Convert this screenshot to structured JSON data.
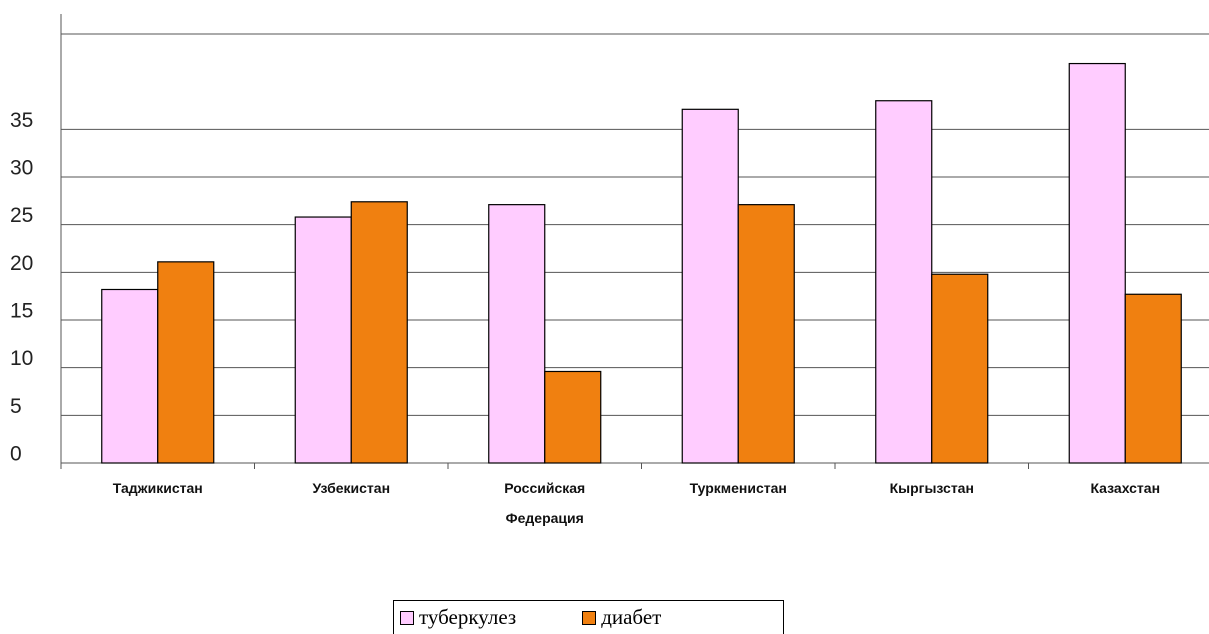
{
  "chart_data": {
    "type": "bar",
    "categories": [
      "Таджикистан",
      "Узбекистан",
      "Российская Федерация",
      "Туркменистан",
      "Кыргызстан",
      "Казахстан"
    ],
    "series": [
      {
        "name": "туберкулез",
        "color": "#ffccff",
        "values": [
          18.2,
          25.8,
          27.1,
          37.1,
          38.0,
          41.9
        ]
      },
      {
        "name": "диабет",
        "color": "#f08010",
        "values": [
          21.1,
          27.4,
          9.6,
          27.1,
          19.8,
          17.7
        ]
      }
    ],
    "ylim": [
      0,
      45
    ],
    "yticks": [
      0,
      5,
      10,
      15,
      20,
      25,
      30,
      35
    ],
    "grid": true,
    "legend": "bottom"
  }
}
